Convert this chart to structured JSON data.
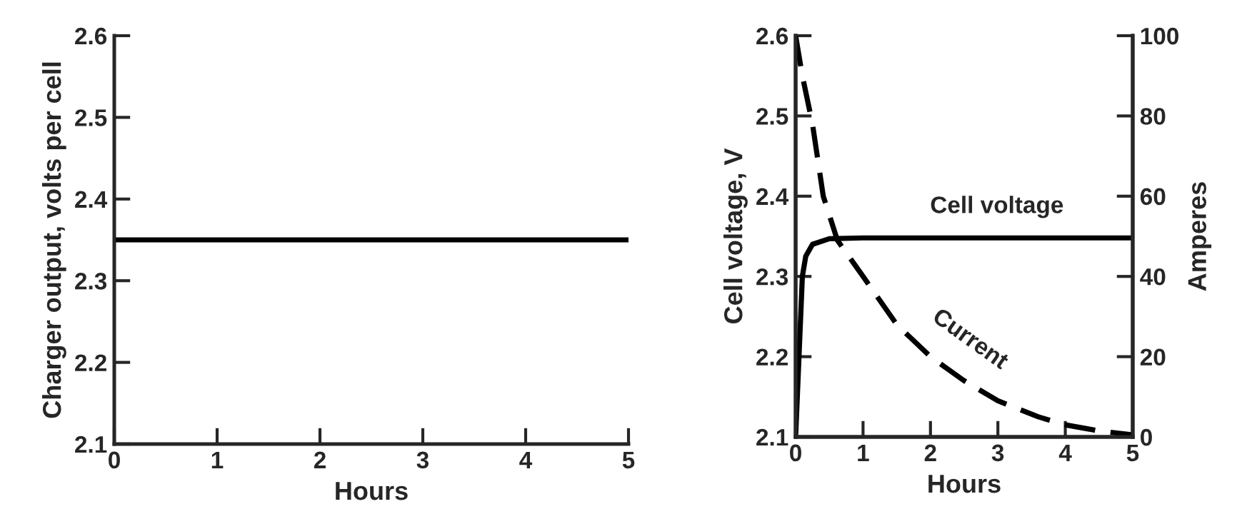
{
  "chart_data": [
    {
      "type": "line",
      "xlabel": "Hours",
      "ylabel": "Charger output, volts per cell",
      "xlim": [
        0,
        5
      ],
      "xticks": [
        0,
        1,
        2,
        3,
        4,
        5
      ],
      "ylim": [
        2.1,
        2.6
      ],
      "yticks": [
        2.1,
        2.2,
        2.3,
        2.4,
        2.5,
        2.6
      ],
      "grid": false,
      "legend": false,
      "series": [
        {
          "color": "#000000",
          "x": [
            0,
            5
          ],
          "values": [
            2.35,
            2.35
          ]
        }
      ]
    },
    {
      "type": "line",
      "xlabel": "Hours",
      "ylabel": "Cell voltage, V",
      "y2label": "Amperes",
      "xlim": [
        0,
        5
      ],
      "xticks": [
        0,
        1,
        2,
        3,
        4,
        5
      ],
      "ylim": [
        2.1,
        2.6
      ],
      "yticks": [
        2.1,
        2.2,
        2.3,
        2.4,
        2.5,
        2.6
      ],
      "y2lim": [
        0,
        100
      ],
      "y2ticks": [
        0,
        20,
        40,
        60,
        80,
        100
      ],
      "grid": false,
      "legend": false,
      "series": [
        {
          "name": "Cell voltage",
          "color": "#000000",
          "line_style": "solid",
          "x": [
            0,
            0.05,
            0.1,
            0.15,
            0.25,
            0.5,
            1,
            5
          ],
          "values": [
            2.1,
            2.2,
            2.3,
            2.325,
            2.34,
            2.347,
            2.348,
            2.348
          ]
        },
        {
          "name": "Current",
          "color": "#000000",
          "line_style": "dashed",
          "axis": "y2",
          "x": [
            0,
            0.1,
            0.25,
            0.41,
            0.62,
            1,
            1.5,
            2,
            2.5,
            3,
            3.6,
            4,
            4.5,
            5
          ],
          "values": [
            100,
            90,
            78,
            60,
            49,
            40,
            28,
            20,
            14,
            9,
            5,
            3,
            1.5,
            0.5
          ]
        }
      ]
    }
  ]
}
